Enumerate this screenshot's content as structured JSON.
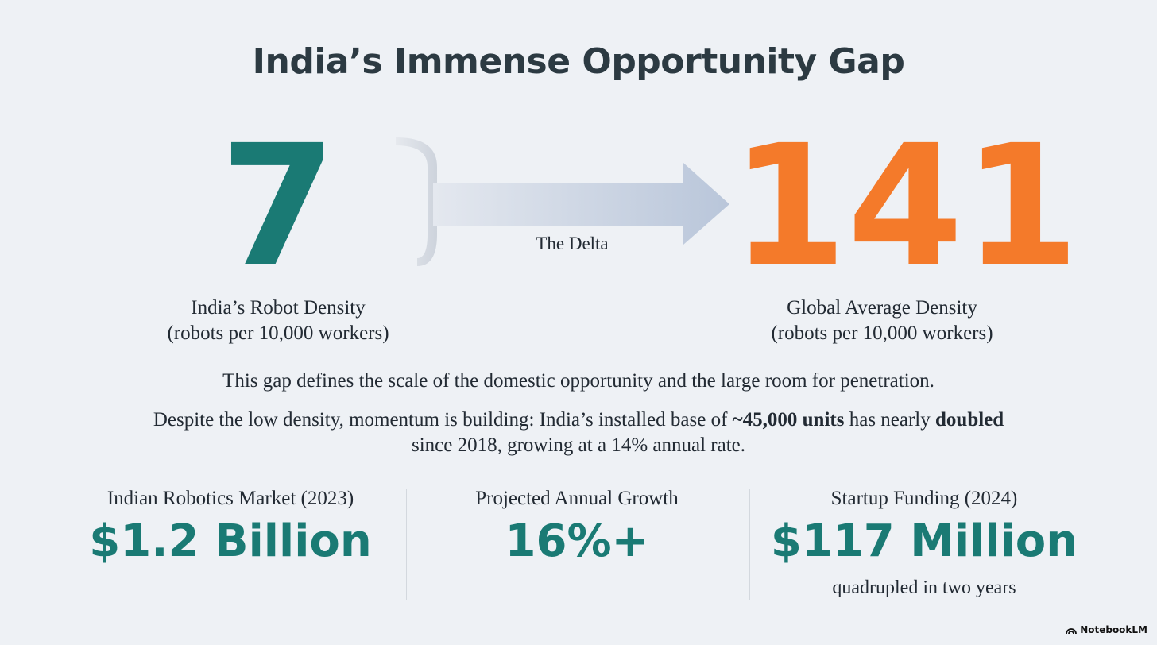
{
  "title": "India’s Immense Opportunity Gap",
  "india": {
    "value": "7",
    "label_line1": "India’s Robot Density",
    "label_line2": "(robots per 10,000 workers)"
  },
  "global": {
    "value": "141",
    "label_line1": "Global Average Density",
    "label_line2": "(robots per 10,000 workers)"
  },
  "delta_label": "The Delta",
  "statement": "This gap defines the scale of the domestic opportunity and the large room for penetration.",
  "momentum": {
    "part1": "Despite the low density, momentum is building: India’s installed base of ",
    "bold1": "~45,000 units",
    "part2": " has nearly ",
    "bold2": "doubled",
    "part3": " since 2018, growing at a 14% annual rate."
  },
  "stats": [
    {
      "label": "Indian Robotics Market (2023)",
      "value": "$1.2 Billion",
      "note": ""
    },
    {
      "label": "Projected Annual Growth",
      "value": "16%+",
      "note": ""
    },
    {
      "label": "Startup Funding (2024)",
      "value": "$117 Million",
      "note": "quadrupled in two years"
    }
  ],
  "brand": "NotebookLM",
  "colors": {
    "teal": "#1a7a74",
    "orange": "#f47a2a",
    "background": "#eef1f5",
    "arrow": "#c2ccdc"
  }
}
